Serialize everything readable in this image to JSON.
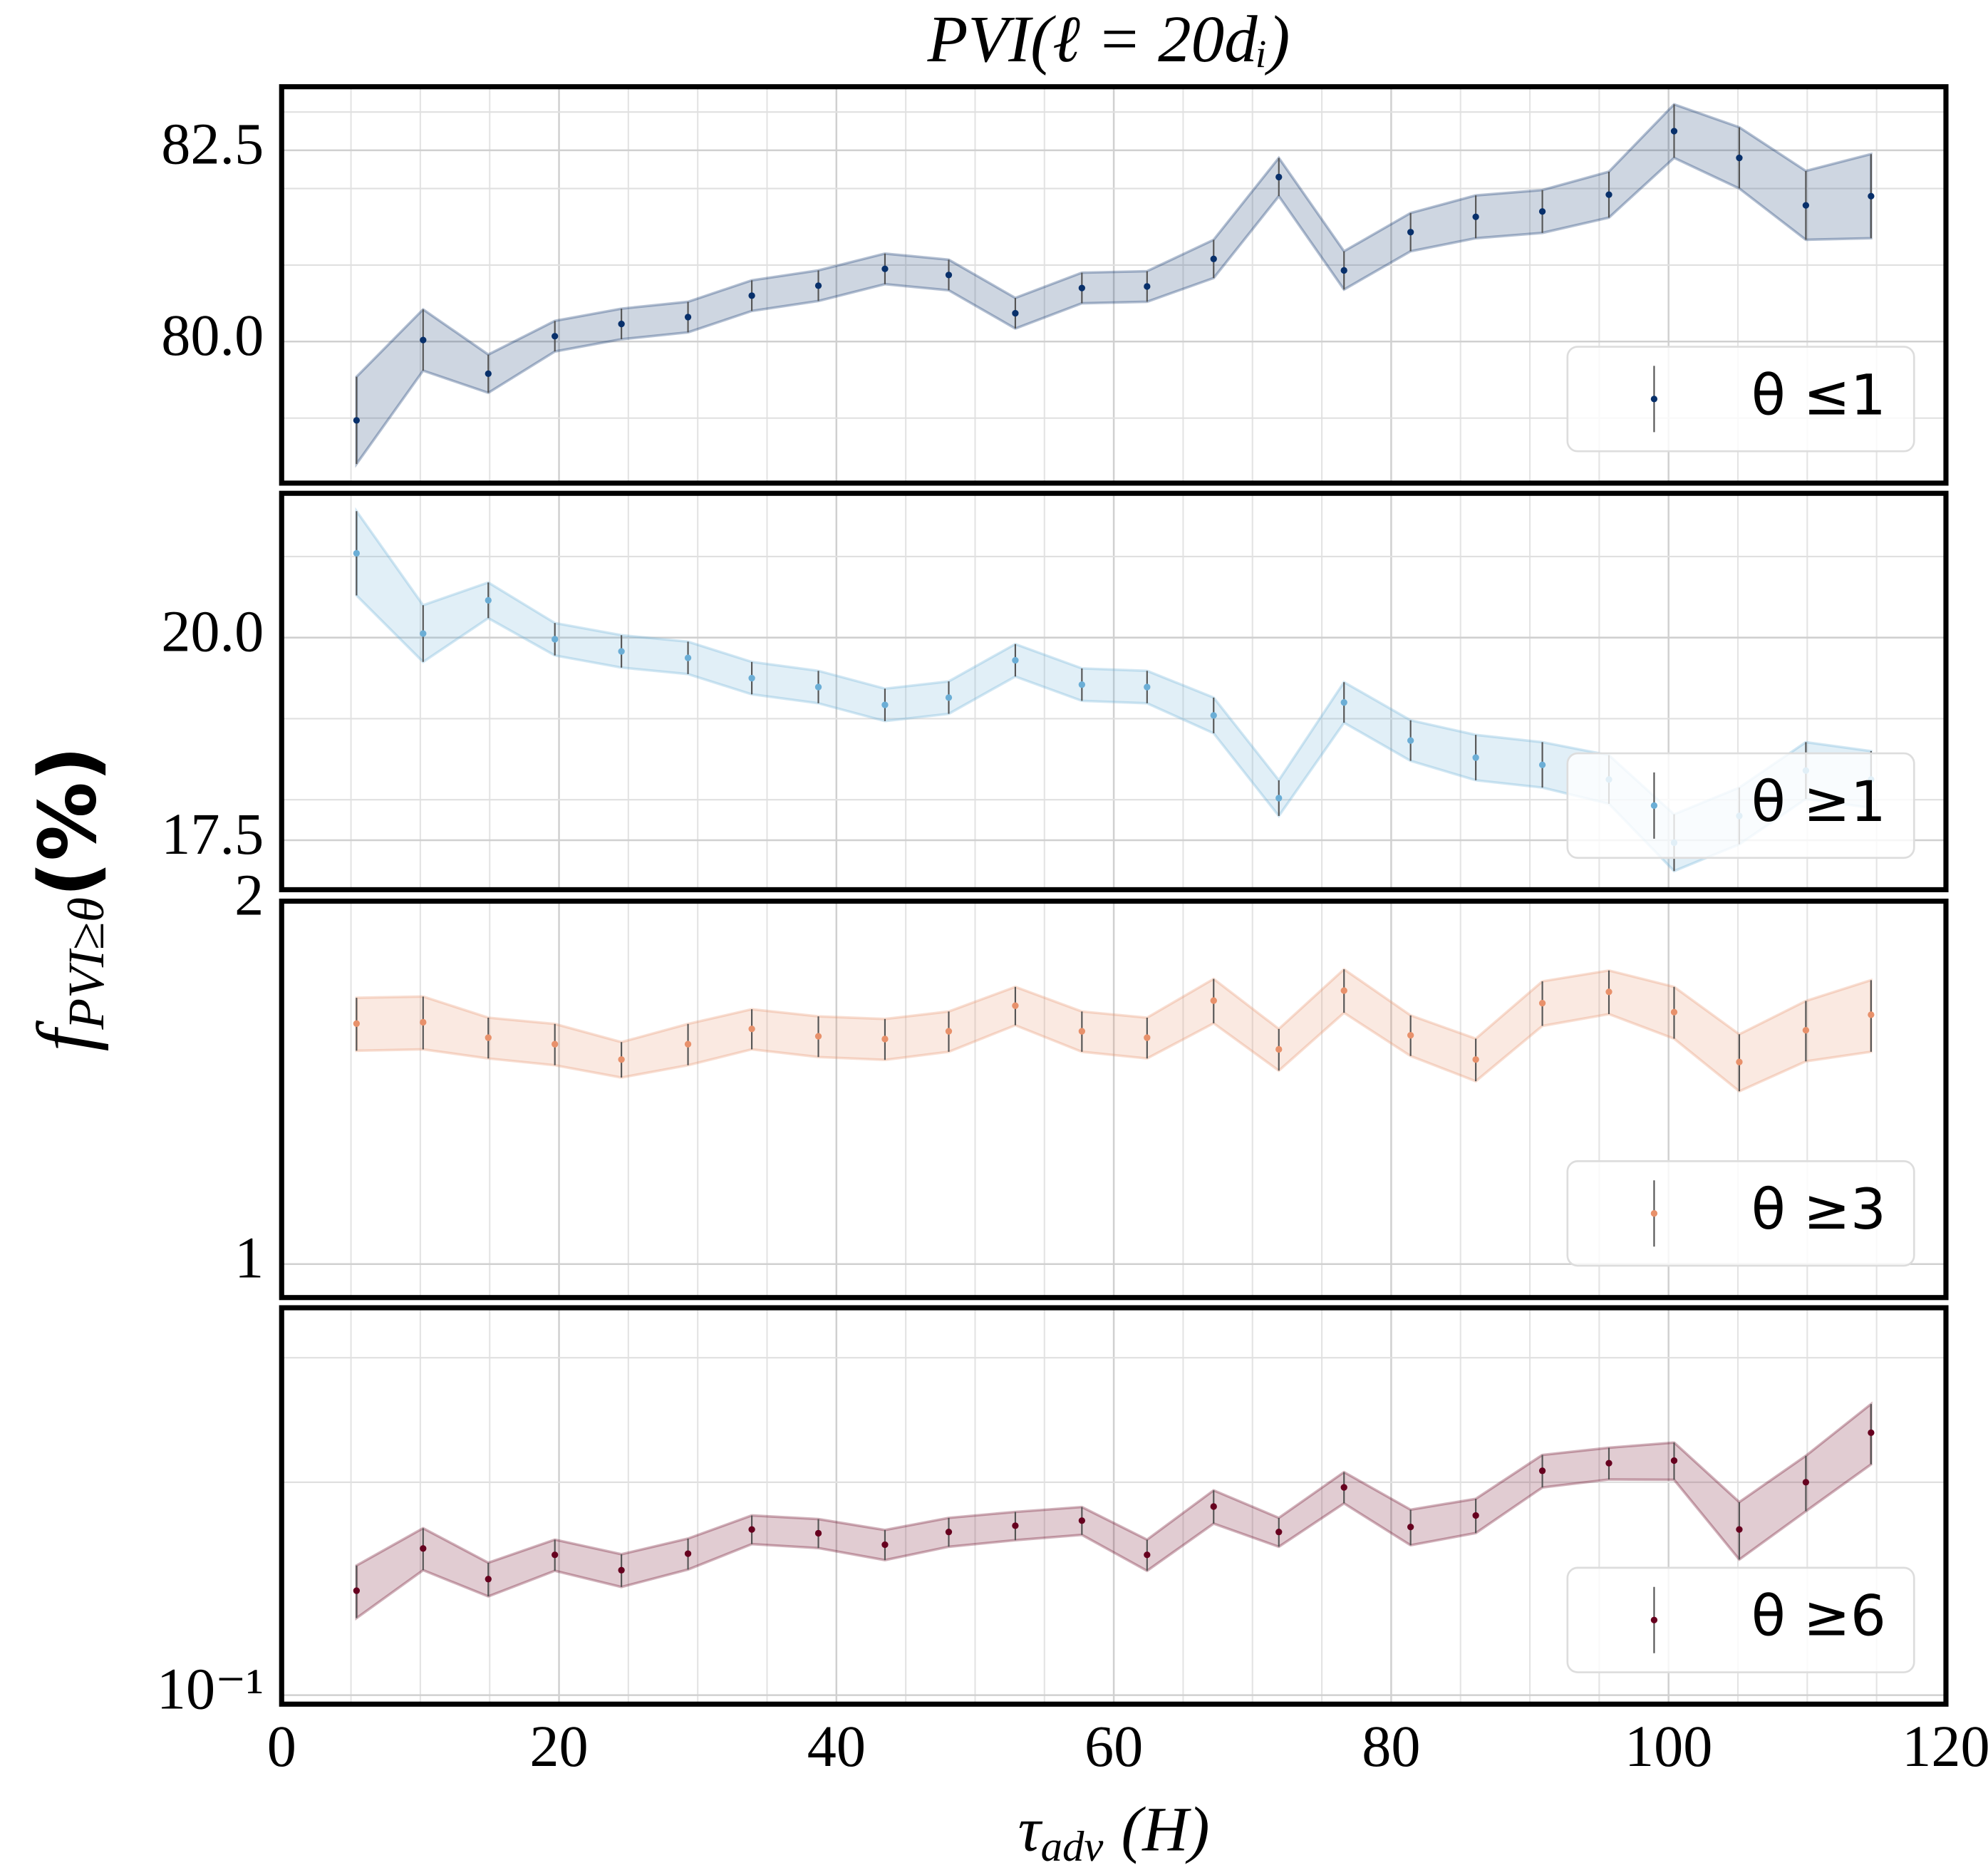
{
  "figure": {
    "title": "PVI(ℓ = 20dᵢ)",
    "ylabel": {
      "main": "f",
      "sub": "PVI≥θ",
      "unit": "(%)"
    },
    "xlabel": {
      "main": "τ",
      "sub": "adv",
      "unit": "(H)"
    }
  },
  "chart_data": [
    {
      "type": "errorbar",
      "log": false,
      "grid": true,
      "legend": "lower right",
      "x": [
        5.4,
        10.2,
        14.9,
        19.7,
        24.5,
        29.3,
        33.9,
        38.7,
        43.5,
        48.1,
        52.9,
        57.7,
        62.4,
        67.2,
        71.9,
        76.6,
        81.4,
        86.1,
        90.9,
        95.7,
        100.4,
        105.1,
        109.9,
        114.6
      ],
      "series": [
        {
          "name": "θ ≤1",
          "color": "#08306b",
          "values": [
            78.97,
            80.02,
            79.58,
            80.07,
            80.23,
            80.32,
            80.6,
            80.73,
            80.95,
            80.87,
            80.37,
            80.7,
            80.72,
            81.08,
            82.15,
            80.93,
            81.43,
            81.63,
            81.7,
            81.92,
            82.75,
            82.4,
            81.78,
            81.9
          ],
          "errors": [
            0.57,
            0.4,
            0.25,
            0.2,
            0.2,
            0.2,
            0.2,
            0.2,
            0.2,
            0.2,
            0.2,
            0.2,
            0.2,
            0.25,
            0.25,
            0.25,
            0.25,
            0.28,
            0.28,
            0.3,
            0.35,
            0.4,
            0.45,
            0.55
          ]
        }
      ],
      "xlim": [
        0,
        120
      ],
      "xticks": [
        0,
        20,
        40,
        60,
        80,
        100,
        120
      ],
      "x_minor_ticks": [
        5,
        10,
        15,
        25,
        30,
        35,
        45,
        50,
        55,
        65,
        70,
        75,
        85,
        90,
        95,
        105,
        110,
        115
      ],
      "ylim": [
        78.15,
        83.33
      ],
      "yticks": [
        {
          "value": 80,
          "label": "80.0"
        },
        {
          "value": 82.5,
          "label": "82.5"
        }
      ],
      "y_minor_ticks": [
        79,
        81,
        82,
        83
      ]
    },
    {
      "type": "errorbar",
      "log": false,
      "grid": true,
      "legend": "lower right",
      "x": [
        5.4,
        10.2,
        14.9,
        19.7,
        24.5,
        29.3,
        33.9,
        38.7,
        43.5,
        48.1,
        52.9,
        57.7,
        62.4,
        67.2,
        71.9,
        76.6,
        81.4,
        86.1,
        90.9,
        95.7,
        100.4,
        105.1,
        109.9,
        114.6
      ],
      "series": [
        {
          "name": "θ ≥1",
          "color": "#6baed6",
          "values": [
            21.04,
            20.05,
            20.46,
            19.98,
            19.83,
            19.75,
            19.5,
            19.39,
            19.17,
            19.26,
            19.72,
            19.42,
            19.39,
            19.04,
            18.02,
            19.2,
            18.73,
            18.52,
            18.43,
            18.25,
            17.47,
            17.8,
            18.36,
            18.25
          ],
          "errors": [
            0.52,
            0.35,
            0.22,
            0.2,
            0.2,
            0.2,
            0.2,
            0.2,
            0.2,
            0.2,
            0.2,
            0.2,
            0.2,
            0.22,
            0.22,
            0.25,
            0.25,
            0.28,
            0.28,
            0.3,
            0.35,
            0.35,
            0.35,
            0.35
          ]
        }
      ],
      "xlim": [
        0,
        120
      ],
      "xticks": [
        0,
        20,
        40,
        60,
        80,
        100,
        120
      ],
      "x_minor_ticks": [
        5,
        10,
        15,
        25,
        30,
        35,
        45,
        50,
        55,
        65,
        70,
        75,
        85,
        90,
        95,
        105,
        110,
        115
      ],
      "ylim": [
        16.89,
        21.78
      ],
      "yticks": [
        {
          "value": 17.5,
          "label": "17.5"
        },
        {
          "value": 20,
          "label": "20.0"
        }
      ],
      "y_minor_ticks": [
        18,
        19,
        21
      ]
    },
    {
      "type": "errorbar",
      "log": true,
      "grid": true,
      "legend": "lower right",
      "x": [
        5.4,
        10.2,
        14.9,
        19.7,
        24.5,
        29.3,
        33.9,
        38.7,
        43.5,
        48.1,
        52.9,
        57.7,
        62.4,
        67.2,
        71.9,
        76.6,
        81.4,
        86.1,
        90.9,
        95.7,
        100.4,
        105.1,
        109.9,
        114.6
      ],
      "series": [
        {
          "name": "θ ≥3",
          "color": "#e8916b",
          "values": [
            1.583,
            1.587,
            1.541,
            1.522,
            1.478,
            1.522,
            1.567,
            1.545,
            1.537,
            1.56,
            1.638,
            1.56,
            1.541,
            1.654,
            1.507,
            1.686,
            1.548,
            1.478,
            1.646,
            1.682,
            1.618,
            1.471,
            1.563,
            1.61
          ],
          "errors": [
            0.08,
            0.08,
            0.06,
            0.06,
            0.05,
            0.06,
            0.06,
            0.06,
            0.06,
            0.06,
            0.06,
            0.06,
            0.06,
            0.07,
            0.06,
            0.07,
            0.06,
            0.06,
            0.07,
            0.07,
            0.08,
            0.08,
            0.09,
            0.11
          ]
        }
      ],
      "xlim": [
        0,
        120
      ],
      "xticks": [
        0,
        20,
        40,
        60,
        80,
        100,
        120
      ],
      "x_minor_ticks": [
        5,
        10,
        15,
        25,
        30,
        35,
        45,
        50,
        55,
        65,
        70,
        75,
        85,
        90,
        95,
        105,
        110,
        115
      ],
      "ylim": [
        0.938,
        2.0
      ],
      "yticks": [
        1,
        2
      ],
      "y_minor_ticks": []
    },
    {
      "type": "errorbar",
      "log": true,
      "grid": true,
      "legend": "lower right",
      "x": [
        5.4,
        10.2,
        14.9,
        19.7,
        24.5,
        29.3,
        33.9,
        38.7,
        43.5,
        48.1,
        52.9,
        57.7,
        62.4,
        67.2,
        71.9,
        76.6,
        81.4,
        86.1,
        90.9,
        95.7,
        100.4,
        105.1,
        109.9,
        114.6
      ],
      "series": [
        {
          "name": "θ ≥6",
          "color": "#67001f",
          "values": [
            0.1405,
            0.1612,
            0.1459,
            0.1579,
            0.1502,
            0.1585,
            0.1715,
            0.1694,
            0.1632,
            0.1701,
            0.1736,
            0.1765,
            0.1579,
            0.1848,
            0.1701,
            0.1967,
            0.1729,
            0.1795,
            0.2076,
            0.2128,
            0.2146,
            0.1715,
            0.2,
            0.235
          ],
          "errors": [
            0.012,
            0.011,
            0.008,
            0.008,
            0.008,
            0.008,
            0.008,
            0.008,
            0.008,
            0.008,
            0.008,
            0.008,
            0.008,
            0.01,
            0.008,
            0.01,
            0.01,
            0.01,
            0.011,
            0.011,
            0.013,
            0.016,
            0.018,
            0.023
          ]
        }
      ],
      "xlim": [
        0,
        120
      ],
      "xticks": [
        0,
        20,
        40,
        60,
        80,
        100,
        120
      ],
      "x_minor_ticks": [
        5,
        10,
        15,
        25,
        30,
        35,
        45,
        50,
        55,
        65,
        70,
        75,
        85,
        90,
        95,
        105,
        110,
        115
      ],
      "ylim": [
        0.0971,
        0.353
      ],
      "yticks": [
        {
          "value": 0.1,
          "label": "10⁻¹"
        }
      ],
      "y_minor_ticks": [
        0.2,
        0.3
      ]
    }
  ]
}
